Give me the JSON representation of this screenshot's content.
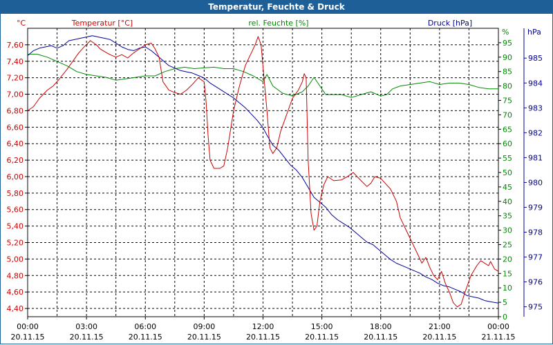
{
  "window": {
    "title": "Temperatur, Feuchte & Druck"
  },
  "chart_data": {
    "type": "line",
    "title": "Temperatur, Feuchte & Druck",
    "x_ticks": [
      {
        "time": "00:00",
        "date": "20.11.15"
      },
      {
        "time": "03:00",
        "date": "20.11.15"
      },
      {
        "time": "06:00",
        "date": "20.11.15"
      },
      {
        "time": "09:00",
        "date": "20.11.15"
      },
      {
        "time": "12:00",
        "date": "20.11.15"
      },
      {
        "time": "15:00",
        "date": "20.11.15"
      },
      {
        "time": "18:00",
        "date": "20.11.15"
      },
      {
        "time": "21:00",
        "date": "20.11.15"
      },
      {
        "time": "00:00",
        "date": "21.11.15"
      }
    ],
    "xlim_hours": [
      0,
      24
    ],
    "axes": {
      "temperature": {
        "label": "Temperatur [°C]",
        "unit": "°C",
        "color": "#cc0000",
        "range": [
          4.3,
          7.8
        ],
        "ticks": [
          "7,60",
          "7,40",
          "7,20",
          "7,00",
          "6,80",
          "6,60",
          "6,40",
          "6,20",
          "6,00",
          "5,80",
          "5,60",
          "5,40",
          "5,20",
          "5,00",
          "4,80",
          "4,60",
          "4,40"
        ],
        "tick_values": [
          7.6,
          7.4,
          7.2,
          7.0,
          6.8,
          6.6,
          6.4,
          6.2,
          6.0,
          5.8,
          5.6,
          5.4,
          5.2,
          5.0,
          4.8,
          4.6,
          4.4
        ]
      },
      "humidity": {
        "label": "rel. Feuchte [%]",
        "unit": "%",
        "color": "#008800",
        "range": [
          0,
          100
        ],
        "ticks": [
          "95",
          "90",
          "85",
          "80",
          "75",
          "70",
          "65",
          "60",
          "55",
          "50",
          "45",
          "40",
          "35",
          "30",
          "25",
          "20",
          "15",
          "10",
          "5",
          "0"
        ],
        "tick_values": [
          95,
          90,
          85,
          80,
          75,
          70,
          65,
          60,
          55,
          50,
          45,
          40,
          35,
          30,
          25,
          20,
          15,
          10,
          5,
          0
        ]
      },
      "pressure": {
        "label": "Druck [hPa]",
        "unit": "hPa",
        "color": "#000099",
        "range": [
          974.6,
          986.2
        ],
        "ticks": [
          "985",
          "984",
          "983",
          "982",
          "981",
          "980",
          "979",
          "978",
          "977",
          "976",
          "975"
        ],
        "tick_values": [
          985,
          984,
          983,
          982,
          981,
          980,
          979,
          978,
          977,
          976,
          975
        ]
      }
    },
    "series": [
      {
        "name": "Temperatur [°C]",
        "axis": "temperature",
        "color": "#cc0000",
        "points": [
          [
            0,
            6.8
          ],
          [
            0.3,
            6.85
          ],
          [
            0.6,
            6.95
          ],
          [
            1,
            7.05
          ],
          [
            1.3,
            7.1
          ],
          [
            1.6,
            7.18
          ],
          [
            2,
            7.3
          ],
          [
            2.3,
            7.4
          ],
          [
            2.6,
            7.5
          ],
          [
            2.9,
            7.58
          ],
          [
            3.2,
            7.65
          ],
          [
            3.5,
            7.6
          ],
          [
            3.7,
            7.55
          ],
          [
            3.9,
            7.52
          ],
          [
            4.2,
            7.48
          ],
          [
            4.5,
            7.45
          ],
          [
            4.8,
            7.48
          ],
          [
            5.1,
            7.44
          ],
          [
            5.4,
            7.5
          ],
          [
            5.7,
            7.55
          ],
          [
            6,
            7.6
          ],
          [
            6.3,
            7.62
          ],
          [
            6.5,
            7.55
          ],
          [
            6.7,
            7.45
          ],
          [
            6.9,
            7.15
          ],
          [
            7.2,
            7.05
          ],
          [
            7.5,
            7.02
          ],
          [
            7.8,
            7.0
          ],
          [
            8.1,
            7.05
          ],
          [
            8.4,
            7.12
          ],
          [
            8.7,
            7.2
          ],
          [
            9.0,
            7.15
          ],
          [
            9.1,
            6.9
          ],
          [
            9.2,
            6.5
          ],
          [
            9.3,
            6.2
          ],
          [
            9.5,
            6.1
          ],
          [
            9.8,
            6.1
          ],
          [
            10.0,
            6.13
          ],
          [
            10.2,
            6.35
          ],
          [
            10.5,
            6.8
          ],
          [
            10.8,
            7.1
          ],
          [
            11.1,
            7.35
          ],
          [
            11.4,
            7.5
          ],
          [
            11.6,
            7.6
          ],
          [
            11.75,
            7.7
          ],
          [
            11.9,
            7.6
          ],
          [
            12.05,
            7.2
          ],
          [
            12.2,
            6.8
          ],
          [
            12.35,
            6.35
          ],
          [
            12.5,
            6.28
          ],
          [
            12.7,
            6.35
          ],
          [
            12.9,
            6.55
          ],
          [
            13.2,
            6.75
          ],
          [
            13.5,
            6.95
          ],
          [
            13.8,
            7.05
          ],
          [
            14.0,
            7.15
          ],
          [
            14.1,
            7.25
          ],
          [
            14.2,
            7.2
          ],
          [
            14.3,
            6.2
          ],
          [
            14.45,
            5.55
          ],
          [
            14.6,
            5.35
          ],
          [
            14.75,
            5.4
          ],
          [
            14.9,
            5.7
          ],
          [
            15.1,
            5.9
          ],
          [
            15.3,
            6.0
          ],
          [
            15.6,
            5.95
          ],
          [
            16.0,
            5.96
          ],
          [
            16.3,
            6.0
          ],
          [
            16.6,
            6.05
          ],
          [
            16.8,
            6.0
          ],
          [
            17.0,
            5.95
          ],
          [
            17.3,
            5.88
          ],
          [
            17.5,
            5.92
          ],
          [
            17.7,
            6.0
          ],
          [
            18.0,
            5.98
          ],
          [
            18.3,
            5.9
          ],
          [
            18.5,
            5.85
          ],
          [
            18.8,
            5.7
          ],
          [
            19.0,
            5.5
          ],
          [
            19.3,
            5.35
          ],
          [
            19.6,
            5.2
          ],
          [
            19.9,
            5.05
          ],
          [
            20.1,
            4.95
          ],
          [
            20.3,
            5.02
          ],
          [
            20.5,
            4.9
          ],
          [
            20.7,
            4.8
          ],
          [
            20.9,
            4.75
          ],
          [
            21.1,
            4.85
          ],
          [
            21.3,
            4.7
          ],
          [
            21.5,
            4.6
          ],
          [
            21.7,
            4.47
          ],
          [
            21.9,
            4.42
          ],
          [
            22.1,
            4.45
          ],
          [
            22.3,
            4.6
          ],
          [
            22.6,
            4.8
          ],
          [
            22.9,
            4.92
          ],
          [
            23.1,
            4.98
          ],
          [
            23.3,
            4.95
          ],
          [
            23.5,
            4.92
          ],
          [
            23.6,
            4.97
          ],
          [
            23.8,
            4.88
          ],
          [
            24.0,
            4.85
          ]
        ]
      },
      {
        "name": "rel. Feuchte [%]",
        "axis": "humidity",
        "color": "#008800",
        "points": [
          [
            0,
            91
          ],
          [
            0.5,
            91
          ],
          [
            1,
            90
          ],
          [
            1.5,
            88.5
          ],
          [
            2,
            87
          ],
          [
            2.5,
            85
          ],
          [
            3,
            84
          ],
          [
            3.5,
            83.5
          ],
          [
            4,
            83
          ],
          [
            4.5,
            82
          ],
          [
            5,
            82.5
          ],
          [
            5.5,
            83
          ],
          [
            6,
            83.5
          ],
          [
            6.5,
            83.5
          ],
          [
            7,
            85
          ],
          [
            7.5,
            86
          ],
          [
            8,
            86.5
          ],
          [
            8.5,
            86
          ],
          [
            9,
            86.3
          ],
          [
            9.5,
            86.5
          ],
          [
            10,
            86
          ],
          [
            10.5,
            86
          ],
          [
            11,
            85
          ],
          [
            11.5,
            83.5
          ],
          [
            12,
            81.5
          ],
          [
            12.2,
            84
          ],
          [
            12.5,
            80
          ],
          [
            13,
            77.5
          ],
          [
            13.5,
            76.5
          ],
          [
            14,
            78
          ],
          [
            14.3,
            80
          ],
          [
            14.6,
            83
          ],
          [
            14.9,
            80
          ],
          [
            15.2,
            77
          ],
          [
            15.6,
            77
          ],
          [
            16,
            77
          ],
          [
            16.5,
            76
          ],
          [
            17,
            77
          ],
          [
            17.5,
            78
          ],
          [
            18,
            76.5
          ],
          [
            18.3,
            77
          ],
          [
            18.6,
            79
          ],
          [
            19,
            80
          ],
          [
            19.5,
            80.5
          ],
          [
            20,
            81
          ],
          [
            20.5,
            81.5
          ],
          [
            21,
            80.5
          ],
          [
            21.5,
            81
          ],
          [
            22,
            81
          ],
          [
            22.5,
            80.5
          ],
          [
            23,
            79.5
          ],
          [
            23.5,
            79
          ],
          [
            24,
            79
          ]
        ]
      },
      {
        "name": "Druck [hPa]",
        "axis": "pressure",
        "color": "#000099",
        "points": [
          [
            0,
            985.1
          ],
          [
            0.3,
            985.3
          ],
          [
            0.6,
            985.4
          ],
          [
            0.9,
            985.45
          ],
          [
            1.2,
            985.5
          ],
          [
            1.5,
            985.4
          ],
          [
            1.8,
            985.5
          ],
          [
            2.1,
            985.7
          ],
          [
            2.4,
            985.75
          ],
          [
            2.7,
            985.8
          ],
          [
            3.0,
            985.85
          ],
          [
            3.3,
            985.9
          ],
          [
            3.6,
            985.85
          ],
          [
            3.9,
            985.8
          ],
          [
            4.2,
            985.75
          ],
          [
            4.5,
            985.6
          ],
          [
            4.8,
            985.45
          ],
          [
            5.1,
            985.35
          ],
          [
            5.4,
            985.3
          ],
          [
            5.7,
            985.4
          ],
          [
            6.0,
            985.45
          ],
          [
            6.3,
            985.3
          ],
          [
            6.6,
            985.1
          ],
          [
            6.9,
            984.9
          ],
          [
            7.2,
            984.7
          ],
          [
            7.5,
            984.6
          ],
          [
            7.8,
            984.5
          ],
          [
            8.1,
            984.45
          ],
          [
            8.4,
            984.4
          ],
          [
            8.7,
            984.3
          ],
          [
            9.0,
            984.2
          ],
          [
            9.3,
            984.0
          ],
          [
            9.6,
            983.85
          ],
          [
            9.9,
            983.7
          ],
          [
            10.2,
            983.55
          ],
          [
            10.5,
            983.4
          ],
          [
            10.8,
            983.2
          ],
          [
            11.1,
            983.0
          ],
          [
            11.4,
            982.75
          ],
          [
            11.7,
            982.5
          ],
          [
            12.0,
            982.2
          ],
          [
            12.2,
            981.9
          ],
          [
            12.5,
            981.5
          ],
          [
            12.8,
            981.3
          ],
          [
            13.1,
            981.0
          ],
          [
            13.4,
            980.7
          ],
          [
            13.7,
            980.5
          ],
          [
            14.0,
            980.2
          ],
          [
            14.3,
            979.8
          ],
          [
            14.6,
            979.4
          ],
          [
            14.9,
            979.2
          ],
          [
            15.2,
            979.0
          ],
          [
            15.5,
            978.7
          ],
          [
            15.8,
            978.5
          ],
          [
            16.1,
            978.35
          ],
          [
            16.4,
            978.2
          ],
          [
            16.7,
            978.0
          ],
          [
            17.0,
            977.8
          ],
          [
            17.3,
            977.6
          ],
          [
            17.6,
            977.5
          ],
          [
            17.9,
            977.3
          ],
          [
            18.2,
            977.1
          ],
          [
            18.5,
            976.9
          ],
          [
            18.8,
            976.75
          ],
          [
            19.1,
            976.65
          ],
          [
            19.4,
            976.55
          ],
          [
            19.7,
            976.45
          ],
          [
            20.0,
            976.35
          ],
          [
            20.3,
            976.2
          ],
          [
            20.6,
            976.1
          ],
          [
            20.9,
            975.95
          ],
          [
            21.2,
            975.85
          ],
          [
            21.5,
            975.8
          ],
          [
            21.8,
            975.7
          ],
          [
            22.1,
            975.6
          ],
          [
            22.4,
            975.45
          ],
          [
            22.7,
            975.4
          ],
          [
            23.0,
            975.35
          ],
          [
            23.3,
            975.25
          ],
          [
            23.6,
            975.2
          ],
          [
            24.0,
            975.15
          ]
        ]
      }
    ]
  }
}
